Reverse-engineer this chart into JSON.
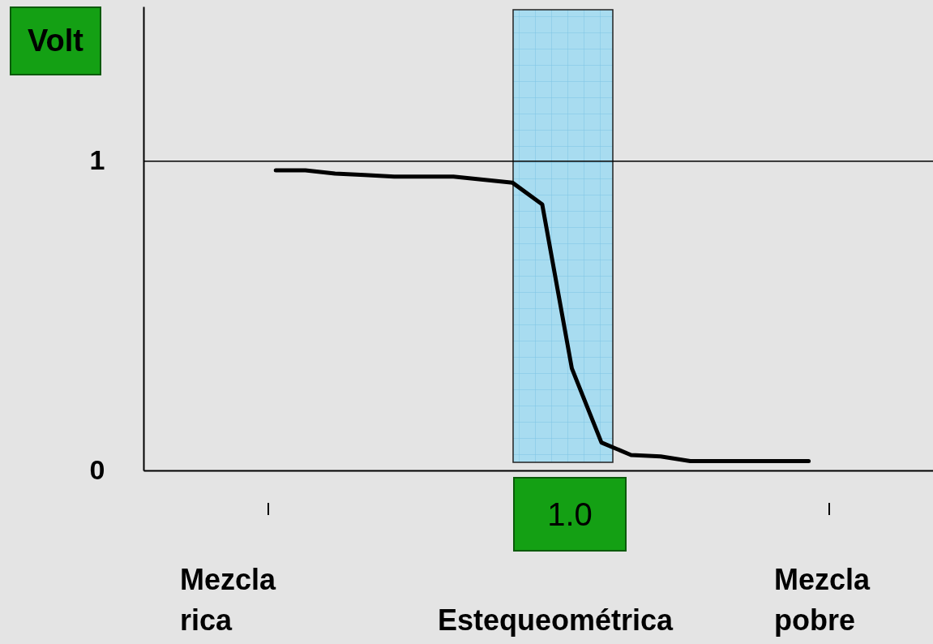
{
  "chart_data": {
    "type": "line",
    "ylabel": "Volt",
    "categories": [
      null,
      null,
      null,
      null,
      null,
      null,
      null,
      null,
      null,
      null,
      null,
      null,
      null,
      null,
      null,
      null,
      null,
      null,
      null
    ],
    "series": [
      {
        "color": "#000000",
        "values": [
          0.97,
          0.97,
          0.96,
          0.955,
          0.95,
          0.95,
          0.95,
          0.94,
          0.93,
          0.86,
          0.33,
          0.09,
          0.05,
          0.045,
          0.03,
          0.03,
          0.03,
          0.03,
          0.03
        ]
      }
    ],
    "ylim": [
      0,
      1.5
    ],
    "yticks": [
      0,
      1
    ],
    "ref_lines": [
      {
        "axis": "y",
        "value": 1,
        "color": "#000000"
      }
    ],
    "annotations": [
      "1.0",
      "Mezcla rica",
      "Estequeométrica",
      "Mezcla pobre"
    ]
  }
}
